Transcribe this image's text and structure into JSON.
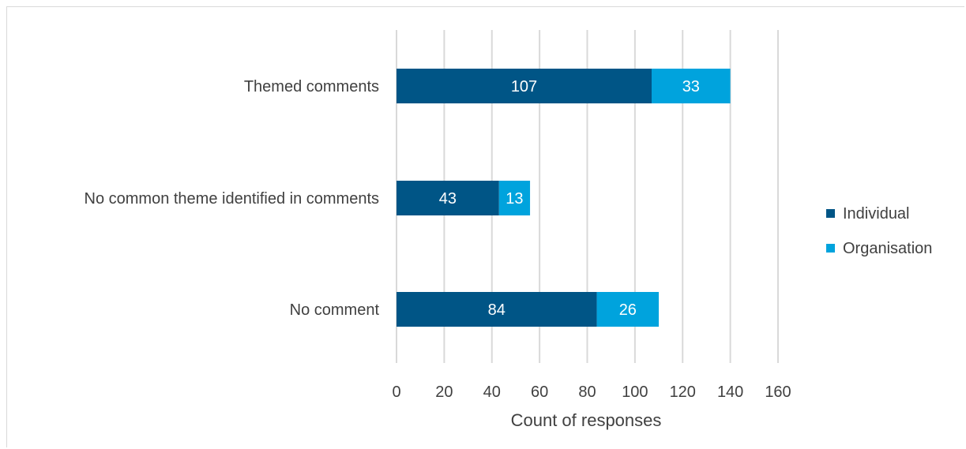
{
  "chart_data": {
    "type": "bar",
    "orientation": "horizontal",
    "stacked": true,
    "categories": [
      "Themed comments",
      "No common theme identified in comments",
      "No comment"
    ],
    "series": [
      {
        "name": "Individual",
        "values": [
          107,
          43,
          84
        ],
        "color": "#005586"
      },
      {
        "name": "Organisation",
        "values": [
          33,
          13,
          26
        ],
        "color": "#00a3dd"
      }
    ],
    "xlabel": "Count of responses",
    "xlim": [
      0,
      160
    ],
    "xticks": [
      0,
      20,
      40,
      60,
      80,
      100,
      120,
      140,
      160
    ],
    "grid": true,
    "legend_position": "right"
  }
}
